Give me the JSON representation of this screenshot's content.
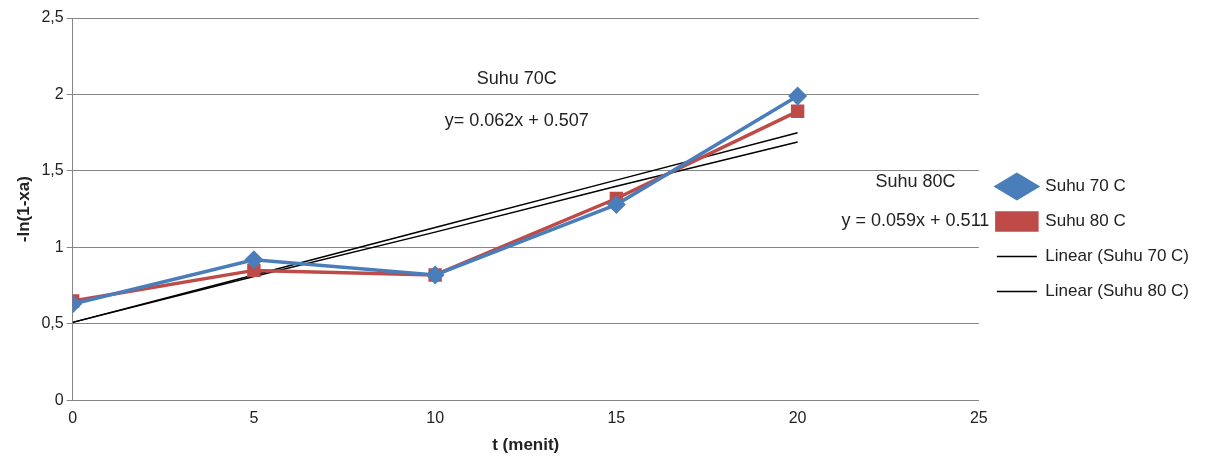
{
  "chart_data": {
    "type": "line",
    "x_label": "t (menit)",
    "y_label": "-ln(1-xa)",
    "x": [
      0,
      5,
      10,
      15,
      20
    ],
    "series": [
      {
        "name": "Suhu 70 C",
        "color": "#4a7ebb",
        "marker": "diamond",
        "line_style": "solid",
        "values": [
          0.63,
          0.92,
          0.82,
          1.28,
          1.99
        ]
      },
      {
        "name": "Suhu 80 C",
        "color": "#be4b48",
        "marker": "square",
        "line_style": "solid",
        "values": [
          0.65,
          0.85,
          0.82,
          1.32,
          1.89
        ]
      },
      {
        "name": "Linear (Suhu 70 C)",
        "color": "#000000",
        "marker": "none",
        "line_style": "solid",
        "values": [
          0.51,
          0.82,
          1.13,
          1.44,
          1.75
        ]
      },
      {
        "name": "Linear (Suhu 80 C)",
        "color": "#000000",
        "marker": "none",
        "line_style": "solid",
        "values": [
          0.51,
          0.81,
          1.1,
          1.4,
          1.69
        ]
      }
    ],
    "annotations": [
      "Suhu 70C",
      "y= 0.062x + 0.507",
      "Suhu 80C",
      "y = 0.059x + 0.511"
    ],
    "xlim": [
      0,
      25
    ],
    "xticks": [
      0,
      5,
      10,
      15,
      20,
      25
    ],
    "ylim": [
      0,
      2.5
    ],
    "yticks": [
      0,
      {
        "value": 0.5,
        "label": "0,5"
      },
      1,
      {
        "value": 1.5,
        "label": "1,5"
      },
      2,
      {
        "value": 2.5,
        "label": "2,5"
      }
    ],
    "grid": true,
    "legend": "right"
  }
}
